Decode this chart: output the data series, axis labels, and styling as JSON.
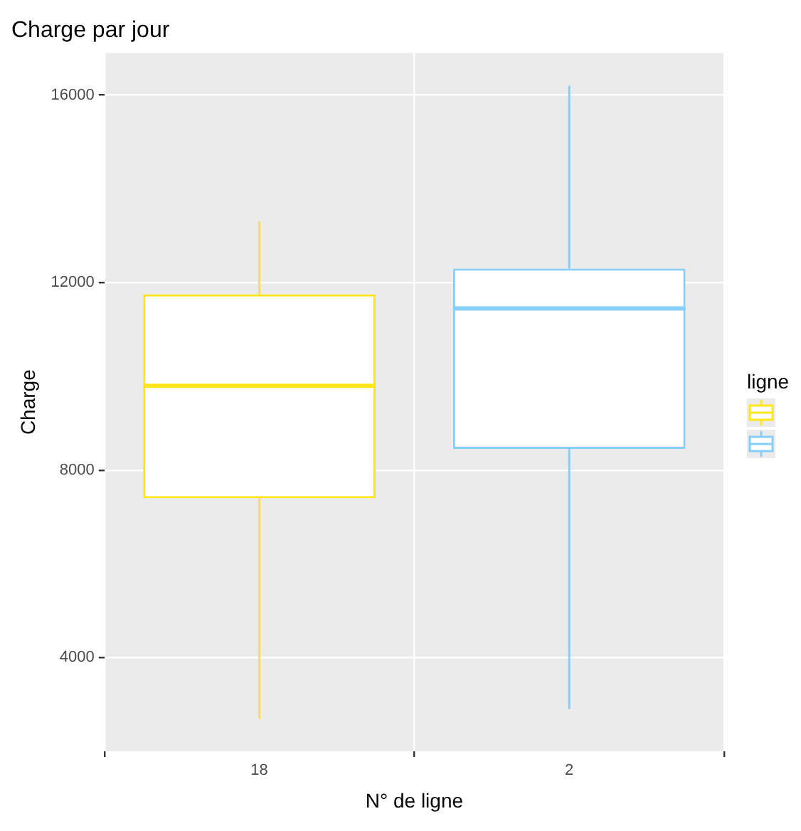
{
  "chart_data": {
    "type": "box",
    "title": "Charge par jour",
    "xlabel": "N° de ligne",
    "ylabel": "Charge",
    "categories": [
      "18",
      "2"
    ],
    "boxes": [
      {
        "low": 2700,
        "q1": 7400,
        "median": 9800,
        "q3": 11750,
        "high": 13300
      },
      {
        "low": 2900,
        "q1": 8450,
        "median": 11450,
        "q3": 12300,
        "high": 16200
      }
    ],
    "colors": [
      "#ffe619",
      "#87cefa"
    ],
    "ylim": [
      2000,
      16900
    ],
    "yticks": [
      4000,
      8000,
      12000,
      16000
    ],
    "grid": true,
    "legend_title": "ligne"
  }
}
